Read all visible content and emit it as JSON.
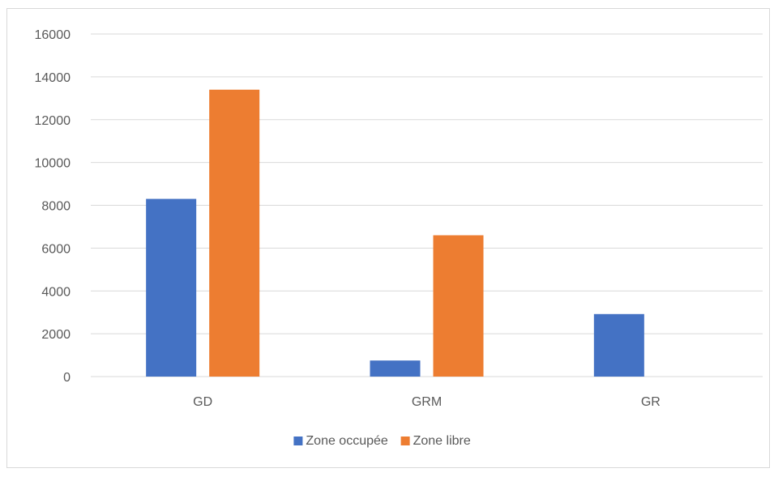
{
  "chart_data": {
    "type": "bar",
    "title": "",
    "xlabel": "",
    "ylabel": "",
    "categories": [
      "GD",
      "GRM",
      "GR"
    ],
    "series": [
      {
        "name": "Zone occupée",
        "values": [
          8300,
          750,
          2920
        ],
        "color": "#4472c4"
      },
      {
        "name": "Zone libre",
        "values": [
          13400,
          6600,
          0
        ],
        "color": "#ed7d31"
      }
    ],
    "ylim": [
      0,
      16000
    ],
    "yticks": [
      0,
      2000,
      4000,
      6000,
      8000,
      10000,
      12000,
      14000,
      16000
    ],
    "grid": true,
    "legend_position": "bottom"
  }
}
